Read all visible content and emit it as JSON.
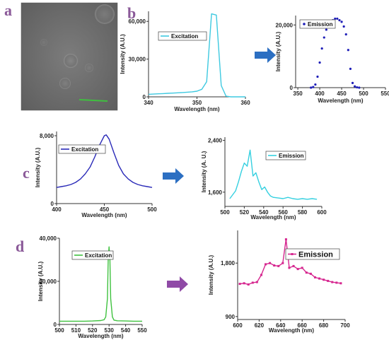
{
  "panel_labels": [
    "a",
    "b",
    "c",
    "d"
  ],
  "colors": {
    "panel_letter": "#8b5a99",
    "b_excitation": "#3ec9e0",
    "b_emission": "#1f1fb8",
    "c_excitation": "#2a2ab8",
    "c_emission": "#35d0e0",
    "d_excitation": "#3fc23f",
    "d_emission": "#d6268f",
    "arrow_blue": "#2c6fc2",
    "arrow_purple": "#8f4aa6",
    "scale_bar": "#3fbf3f"
  },
  "chart_data": [
    {
      "id": "b_excitation",
      "type": "line",
      "legend": "Excitation",
      "xlabel": "Wavelength (nm)",
      "ylabel": "Intensity (A.U.)",
      "xlim": [
        340,
        360
      ],
      "ylim": [
        0,
        68000
      ],
      "xticks": [
        "340",
        "350",
        "360"
      ],
      "xtick_values": [
        340,
        350,
        360
      ],
      "yticks": [
        "0",
        "30,000",
        "60,000"
      ],
      "ytick_values": [
        0,
        30000,
        60000
      ],
      "x": [
        340,
        341,
        342,
        343,
        344,
        345,
        346,
        347,
        348,
        349,
        350,
        351,
        352,
        353,
        354,
        355,
        356,
        357,
        358,
        359,
        360
      ],
      "values": [
        2000,
        2200,
        2400,
        2600,
        2800,
        3000,
        3200,
        3400,
        3700,
        4000,
        4500,
        6000,
        12000,
        66000,
        65000,
        9000,
        500,
        0,
        0,
        0,
        0
      ]
    },
    {
      "id": "b_emission",
      "type": "scatter",
      "legend": "Emission",
      "xlabel": "Wavelength (nm)",
      "ylabel": "Intensity (A.U.)",
      "xlim": [
        345,
        550
      ],
      "ylim": [
        0,
        23000
      ],
      "xticks": [
        "350",
        "400",
        "450",
        "500",
        "550"
      ],
      "xtick_values": [
        350,
        400,
        450,
        500,
        550
      ],
      "yticks": [
        "0",
        "20,000"
      ],
      "ytick_values": [
        0,
        20000
      ],
      "x": [
        380,
        385,
        390,
        395,
        400,
        405,
        410,
        415,
        420,
        425,
        430,
        435,
        440,
        445,
        450,
        455,
        460,
        465,
        470,
        475,
        480,
        485,
        490
      ],
      "values": [
        0,
        200,
        1000,
        3500,
        8000,
        12500,
        16000,
        18500,
        20000,
        21000,
        21500,
        22000,
        22000,
        21500,
        21000,
        19500,
        17000,
        12000,
        6000,
        1500,
        400,
        100,
        0
      ]
    },
    {
      "id": "c_excitation",
      "type": "line",
      "legend": "Excitation",
      "xlabel": "Wavelength (nm)",
      "ylabel": "Intensity (A.U.)",
      "xlim": [
        400,
        500
      ],
      "ylim": [
        0,
        8500
      ],
      "xticks": [
        "400",
        "450",
        "500"
      ],
      "xtick_values": [
        400,
        450,
        500
      ],
      "yticks": [
        "0",
        "8,000"
      ],
      "ytick_values": [
        0,
        8000
      ],
      "x": [
        400,
        405,
        410,
        415,
        420,
        425,
        430,
        435,
        440,
        445,
        450,
        452,
        455,
        460,
        465,
        470,
        475,
        480,
        485,
        490,
        495,
        500
      ],
      "values": [
        1900,
        2000,
        2100,
        2250,
        2500,
        2900,
        3500,
        4300,
        5500,
        6900,
        8000,
        8100,
        7600,
        6000,
        4500,
        3500,
        2900,
        2500,
        2250,
        2100,
        2000,
        1900
      ]
    },
    {
      "id": "c_emission",
      "type": "line",
      "legend": "Emission",
      "xlabel": "Wavelength (nm)",
      "ylabel": "Intensity (A. U.)",
      "xlim": [
        500,
        600
      ],
      "ylim": [
        1380,
        2450
      ],
      "xticks": [
        "500",
        "520",
        "540",
        "560",
        "580",
        "600"
      ],
      "xtick_values": [
        500,
        520,
        540,
        560,
        580,
        600
      ],
      "yticks": [
        "1,600",
        "2,400"
      ],
      "ytick_values": [
        1600,
        2400
      ],
      "x": [
        505,
        508,
        511,
        514,
        517,
        520,
        523,
        526,
        529,
        532,
        535,
        538,
        541,
        544,
        547,
        550,
        555,
        560,
        565,
        570,
        575,
        580,
        585,
        590,
        595
      ],
      "values": [
        1500,
        1560,
        1620,
        1760,
        1920,
        2050,
        2000,
        2250,
        1850,
        1900,
        1760,
        1640,
        1680,
        1600,
        1540,
        1520,
        1510,
        1500,
        1520,
        1500,
        1490,
        1500,
        1490,
        1500,
        1490
      ]
    },
    {
      "id": "d_excitation",
      "type": "line",
      "legend": "Excitation",
      "xlabel": "Wavelength (nm)",
      "ylabel": "Intensity (A.U.)",
      "xlim": [
        500,
        550
      ],
      "ylim": [
        0,
        40000
      ],
      "xticks": [
        "500",
        "510",
        "520",
        "530",
        "540",
        "550"
      ],
      "xtick_values": [
        500,
        510,
        520,
        530,
        540,
        550
      ],
      "yticks": [
        "0",
        "20,000",
        "40,000"
      ],
      "ytick_values": [
        0,
        20000,
        40000
      ],
      "x": [
        500,
        505,
        510,
        515,
        520,
        525,
        527,
        528,
        529,
        529.5,
        530,
        530.5,
        531,
        532,
        533,
        535,
        540,
        545,
        550
      ],
      "values": [
        1500,
        1500,
        1500,
        1500,
        1600,
        1800,
        2200,
        3500,
        12000,
        30000,
        36000,
        30000,
        12000,
        3500,
        2000,
        1700,
        1600,
        1500,
        1500
      ]
    },
    {
      "id": "d_emission",
      "type": "line",
      "legend": "Emission",
      "xlabel": "Wavelength (nm)",
      "ylabel": "Intensity (A.U.)",
      "xlim": [
        600,
        700
      ],
      "ylim": [
        850,
        2350
      ],
      "xticks": [
        "600",
        "620",
        "640",
        "660",
        "680",
        "700"
      ],
      "xtick_values": [
        600,
        620,
        640,
        660,
        680,
        700
      ],
      "yticks": [
        "900",
        "1,800"
      ],
      "ytick_values": [
        900,
        1800
      ],
      "x": [
        602,
        606,
        610,
        614,
        618,
        622,
        626,
        630,
        634,
        638,
        642,
        645,
        648,
        652,
        656,
        660,
        664,
        668,
        672,
        676,
        680,
        684,
        688,
        692,
        696
      ],
      "values": [
        1450,
        1460,
        1440,
        1470,
        1480,
        1600,
        1780,
        1800,
        1760,
        1750,
        1800,
        2200,
        1720,
        1750,
        1700,
        1720,
        1640,
        1620,
        1560,
        1540,
        1520,
        1500,
        1480,
        1470,
        1460
      ]
    }
  ]
}
